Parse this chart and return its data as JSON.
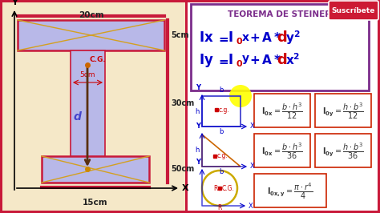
{
  "bg_color": "#c8193a",
  "left_bg": "#f5e8c8",
  "right_bg": "#ffffff",
  "beam_color": "#b8b8e8",
  "beam_edge": "#c8193a",
  "orange": "#d4a020",
  "red": "#c8193a",
  "cyan_dim": "#00aacc",
  "title_color": "#7b2d8b",
  "eq_blue": "#0000cc",
  "eq_red": "#cc0000",
  "formula_border": "#cc2200",
  "title": "TEOREMA DE STEINER",
  "subs_text": "Suscríbete",
  "label_20cm": "20cm",
  "label_15cm": "15cm",
  "label_5cm_top": "5cm",
  "label_30cm": "30cm",
  "label_50cm": "50cm",
  "label_5cm_web": "5cm",
  "label_Y": "Y",
  "label_X": "X",
  "label_CG": "C.G.",
  "label_d": "d"
}
